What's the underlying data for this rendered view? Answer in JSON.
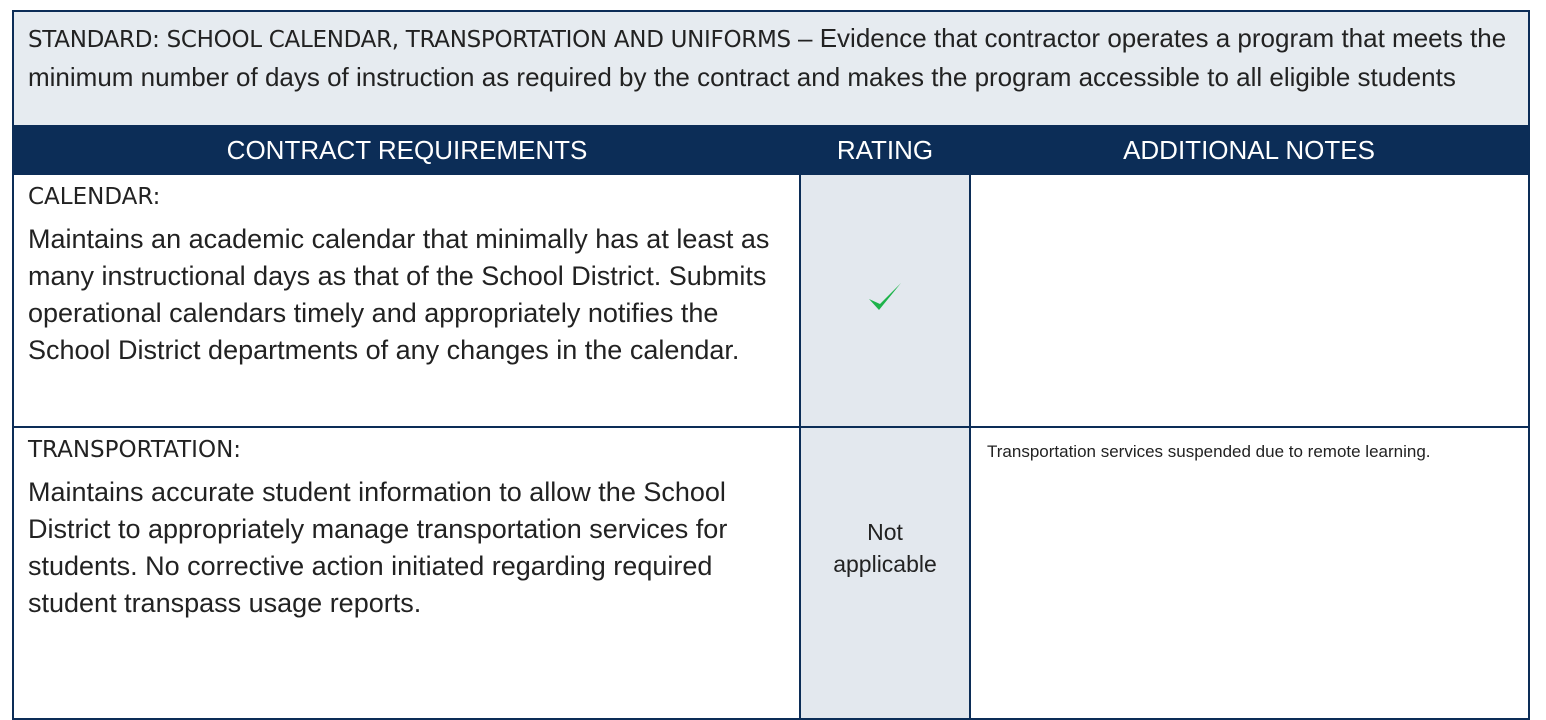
{
  "standard": {
    "title": "STANDARD: SCHOOL CALENDAR, TRANSPORTATION AND UNIFORMS",
    "description": "– Evidence that contractor operates a program that meets the minimum number of days of instruction as required by the contract and makes the program accessible to all eligible students"
  },
  "table": {
    "headers": [
      "CONTRACT REQUIREMENTS",
      "RATING",
      "ADDITIONAL NOTES"
    ],
    "rows": [
      {
        "heading": "CALENDAR:",
        "text": "Maintains an academic calendar that minimally has at least as many instructional days as that of the School District. Submits operational calendars timely and appropriately notifies the School District departments of any changes in the calendar."
      },
      {
        "heading": "TRANSPORTATION:",
        "text": "Maintains accurate student information to allow the School District to appropriately manage transportation services for students. No corrective action initiated regarding required student transpass usage reports.",
        "rating": "Not applicable",
        "notes": "Transportation services suspended due to remote learning."
      }
    ]
  }
}
